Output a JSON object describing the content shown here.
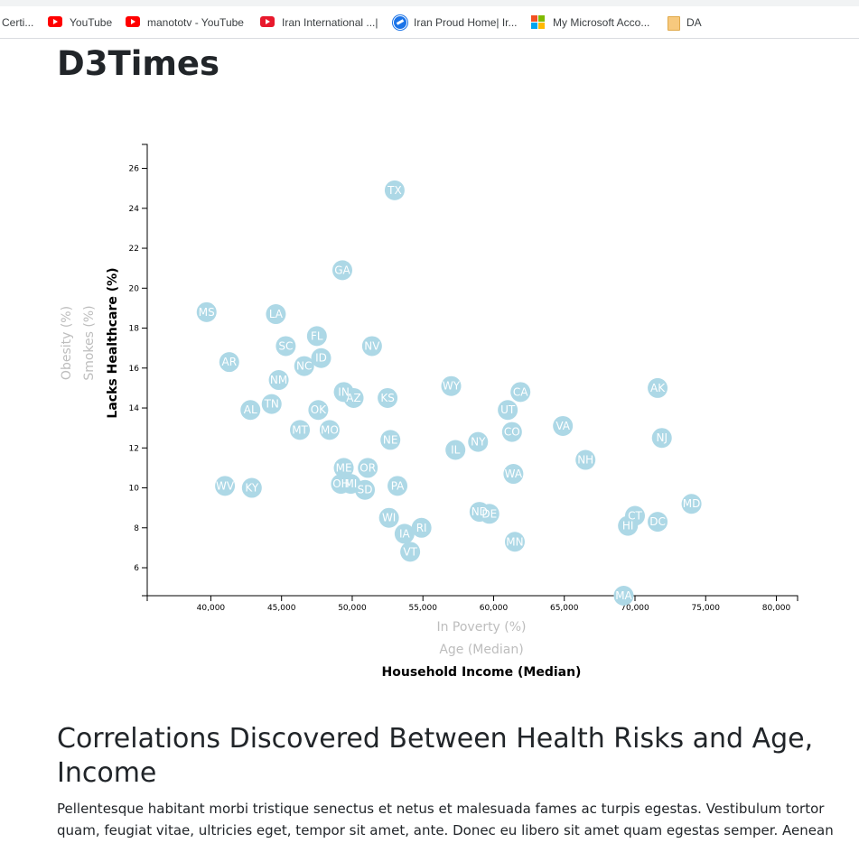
{
  "bookmarks": {
    "items": [
      {
        "label": "Certi...",
        "icon": "certificate-icon"
      },
      {
        "label": "YouTube",
        "icon": "youtube-icon"
      },
      {
        "label": "manototv - YouTube",
        "icon": "youtube-icon"
      },
      {
        "label": "Iran International ...|",
        "icon": "iran-international-icon"
      },
      {
        "label": "Iran Proud Home| Ir...",
        "icon": "iran-proud-icon"
      },
      {
        "label": "My Microsoft Acco...",
        "icon": "microsoft-icon"
      },
      {
        "label": "DA",
        "icon": "folder-icon"
      }
    ]
  },
  "page": {
    "title": "D3Times",
    "section_title": "Correlations Discovered Between Health Risks and Age, Income",
    "paragraph": "Pellentesque habitant morbi tristique senectus et netus et malesuada fames ac turpis egestas. Vestibulum tortor quam, feugiat vitae, ultricies eget, tempor sit amet, ante. Donec eu libero sit amet quam egestas semper. Aenean"
  },
  "colors": {
    "circle": "#add8e6",
    "state_text": "#ffffff",
    "active_label": "#000000",
    "inactive_label": "#bdbdbd"
  },
  "chart_data": {
    "type": "scatter",
    "x_axis_labels": [
      {
        "text": "In Poverty (%)",
        "active": false
      },
      {
        "text": "Age (Median)",
        "active": false
      },
      {
        "text": "Household Income (Median)",
        "active": true
      }
    ],
    "y_axis_labels": [
      {
        "text": "Obesity (%)",
        "active": false
      },
      {
        "text": "Smokes (%)",
        "active": false
      },
      {
        "text": "Lacks Healthcare (%)",
        "active": true
      }
    ],
    "xlim": [
      35500,
      81500
    ],
    "ylim": [
      4.6,
      27.2
    ],
    "x_ticks": [
      40000,
      45000,
      50000,
      55000,
      60000,
      65000,
      70000,
      75000,
      80000
    ],
    "x_tick_labels": [
      "40,000",
      "45,000",
      "50,000",
      "55,000",
      "60,000",
      "65,000",
      "70,000",
      "75,000",
      "80,000"
    ],
    "y_ticks": [
      6,
      8,
      10,
      12,
      14,
      16,
      18,
      20,
      22,
      24,
      26
    ],
    "y_tick_labels": [
      "6",
      "8",
      "10",
      "12",
      "14",
      "16",
      "18",
      "20",
      "22",
      "24",
      "26"
    ],
    "points": [
      {
        "abbr": "TX",
        "x": 53000,
        "y": 24.9
      },
      {
        "abbr": "GA",
        "x": 49300,
        "y": 20.9
      },
      {
        "abbr": "MS",
        "x": 39700,
        "y": 18.8
      },
      {
        "abbr": "LA",
        "x": 44600,
        "y": 18.7
      },
      {
        "abbr": "FL",
        "x": 47500,
        "y": 17.6
      },
      {
        "abbr": "SC",
        "x": 45300,
        "y": 17.1
      },
      {
        "abbr": "NV",
        "x": 51400,
        "y": 17.1
      },
      {
        "abbr": "ID",
        "x": 47800,
        "y": 16.5
      },
      {
        "abbr": "AR",
        "x": 41300,
        "y": 16.3
      },
      {
        "abbr": "NC",
        "x": 46600,
        "y": 16.1
      },
      {
        "abbr": "NM",
        "x": 44800,
        "y": 15.4
      },
      {
        "abbr": "WY",
        "x": 57000,
        "y": 15.1
      },
      {
        "abbr": "AK",
        "x": 71600,
        "y": 15.0
      },
      {
        "abbr": "IN",
        "x": 49400,
        "y": 14.8
      },
      {
        "abbr": "CA",
        "x": 61900,
        "y": 14.8
      },
      {
        "abbr": "AZ",
        "x": 50100,
        "y": 14.5
      },
      {
        "abbr": "KS",
        "x": 52500,
        "y": 14.5
      },
      {
        "abbr": "TN",
        "x": 44300,
        "y": 14.2
      },
      {
        "abbr": "AL",
        "x": 42800,
        "y": 13.9
      },
      {
        "abbr": "OK",
        "x": 47600,
        "y": 13.9
      },
      {
        "abbr": "UT",
        "x": 61000,
        "y": 13.9
      },
      {
        "abbr": "VA",
        "x": 64900,
        "y": 13.1
      },
      {
        "abbr": "MT",
        "x": 46300,
        "y": 12.9
      },
      {
        "abbr": "MO",
        "x": 48400,
        "y": 12.9
      },
      {
        "abbr": "CO",
        "x": 61300,
        "y": 12.8
      },
      {
        "abbr": "NE",
        "x": 52700,
        "y": 12.4
      },
      {
        "abbr": "NJ",
        "x": 71900,
        "y": 12.5
      },
      {
        "abbr": "NY",
        "x": 58900,
        "y": 12.3
      },
      {
        "abbr": "IL",
        "x": 57300,
        "y": 11.9
      },
      {
        "abbr": "NH",
        "x": 66500,
        "y": 11.4
      },
      {
        "abbr": "ME",
        "x": 49400,
        "y": 11.0
      },
      {
        "abbr": "OR",
        "x": 51100,
        "y": 11.0
      },
      {
        "abbr": "WA",
        "x": 61400,
        "y": 10.7
      },
      {
        "abbr": "OH",
        "x": 49200,
        "y": 10.2
      },
      {
        "abbr": "MI",
        "x": 49900,
        "y": 10.2
      },
      {
        "abbr": "WV",
        "x": 41000,
        "y": 10.1
      },
      {
        "abbr": "KY",
        "x": 42900,
        "y": 10.0
      },
      {
        "abbr": "PA",
        "x": 53200,
        "y": 10.1
      },
      {
        "abbr": "SD",
        "x": 50900,
        "y": 9.9
      },
      {
        "abbr": "MD",
        "x": 74000,
        "y": 9.2
      },
      {
        "abbr": "ND",
        "x": 59000,
        "y": 8.8
      },
      {
        "abbr": "DE",
        "x": 59700,
        "y": 8.7
      },
      {
        "abbr": "CT",
        "x": 70000,
        "y": 8.6
      },
      {
        "abbr": "WI",
        "x": 52600,
        "y": 8.5
      },
      {
        "abbr": "DC",
        "x": 71600,
        "y": 8.3
      },
      {
        "abbr": "HI",
        "x": 69500,
        "y": 8.1
      },
      {
        "abbr": "RI",
        "x": 54900,
        "y": 8.0
      },
      {
        "abbr": "IA",
        "x": 53700,
        "y": 7.7
      },
      {
        "abbr": "MN",
        "x": 61500,
        "y": 7.3
      },
      {
        "abbr": "VT",
        "x": 54100,
        "y": 6.8
      },
      {
        "abbr": "MA",
        "x": 69200,
        "y": 4.6
      }
    ]
  }
}
